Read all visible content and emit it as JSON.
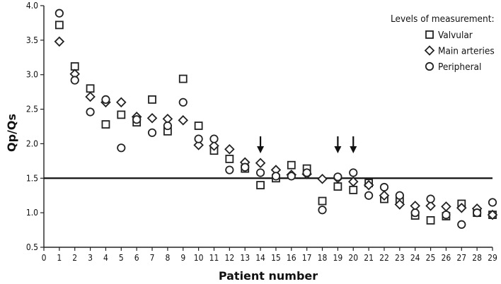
{
  "chart_data": {
    "type": "scatter",
    "title": "",
    "xlabel": "Patient number",
    "ylabel": "Qp/Qs",
    "xlim": [
      0,
      29
    ],
    "ylim": [
      0.5,
      4.0
    ],
    "x_ticks": [
      "0",
      "1",
      "2",
      "3",
      "4",
      "5",
      "6",
      "7",
      "8",
      "9",
      "10",
      "11",
      "12",
      "13",
      "14",
      "15",
      "16",
      "17",
      "18",
      "19",
      "20",
      "21",
      "22",
      "23",
      "24",
      "25",
      "26",
      "27",
      "28",
      "29"
    ],
    "y_ticks": [
      "0.5",
      "1.0",
      "1.5",
      "2.0",
      "2.5",
      "3.0",
      "3.5",
      "4.0"
    ],
    "reference_line_y": 1.5,
    "arrows_at_patient": [
      14,
      19,
      20
    ],
    "grid": false,
    "legend": {
      "title": "Levels of measurement:",
      "placement": "top-right"
    },
    "series": [
      {
        "name": "Valvular",
        "marker": "square",
        "x": [
          1,
          2,
          3,
          4,
          5,
          6,
          7,
          8,
          9,
          10,
          11,
          12,
          13,
          14,
          15,
          16,
          17,
          18,
          19,
          20,
          21,
          22,
          23,
          24,
          25,
          26,
          27,
          28,
          29
        ],
        "values": [
          3.72,
          3.12,
          2.8,
          2.28,
          2.42,
          2.31,
          2.64,
          2.18,
          2.94,
          2.26,
          1.9,
          1.78,
          1.64,
          1.4,
          1.5,
          1.69,
          1.64,
          1.17,
          1.38,
          1.33,
          1.43,
          1.2,
          1.17,
          0.96,
          0.89,
          0.95,
          1.13,
          1.0,
          0.97
        ]
      },
      {
        "name": "Main arteries",
        "marker": "diamond",
        "x": [
          1,
          2,
          3,
          4,
          5,
          6,
          7,
          8,
          9,
          10,
          11,
          12,
          13,
          14,
          15,
          16,
          17,
          18,
          19,
          20,
          21,
          22,
          23,
          24,
          25,
          26,
          27,
          28,
          29
        ],
        "values": [
          3.48,
          3.01,
          2.68,
          2.6,
          2.6,
          2.39,
          2.37,
          2.36,
          2.34,
          1.98,
          1.97,
          1.92,
          1.73,
          1.72,
          1.62,
          1.55,
          1.56,
          1.49,
          1.5,
          1.45,
          1.4,
          1.25,
          1.12,
          1.1,
          1.1,
          1.09,
          1.07,
          1.06,
          0.97
        ]
      },
      {
        "name": "Peripheral",
        "marker": "circle",
        "x": [
          1,
          2,
          3,
          4,
          5,
          6,
          7,
          8,
          9,
          10,
          11,
          12,
          13,
          14,
          15,
          16,
          17,
          18,
          19,
          20,
          21,
          22,
          23,
          24,
          25,
          26,
          27,
          28,
          29
        ],
        "values": [
          3.89,
          2.92,
          2.46,
          2.64,
          1.94,
          2.35,
          2.16,
          2.26,
          2.6,
          2.07,
          2.07,
          1.62,
          1.66,
          1.58,
          1.53,
          1.53,
          1.58,
          1.04,
          1.52,
          1.58,
          1.25,
          1.37,
          1.25,
          1.0,
          1.2,
          0.97,
          0.83,
          1.0,
          1.15
        ]
      }
    ]
  }
}
